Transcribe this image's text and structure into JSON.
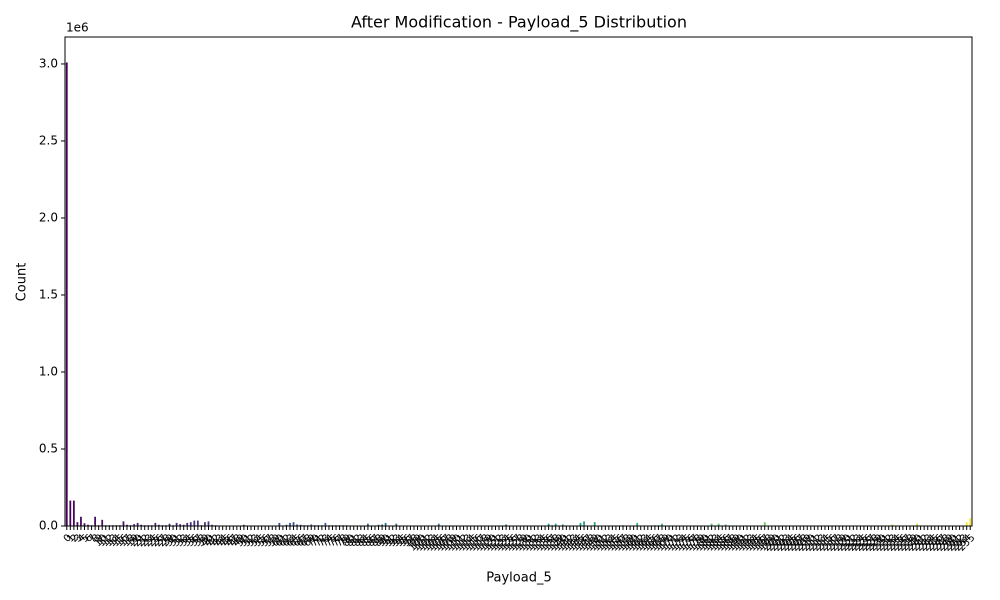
{
  "chart_data": {
    "type": "bar",
    "title": "After Modification - Payload_5 Distribution",
    "x_label": "Payload_5",
    "y_label": "Count",
    "y_offset_label": "1e6",
    "colormap": "viridis",
    "categories": [
      "0",
      "1",
      "2",
      "3",
      "4",
      "5",
      "6",
      "7",
      "8",
      "9",
      "10",
      "11",
      "12",
      "13",
      "14",
      "15",
      "16",
      "17",
      "18",
      "19",
      "20",
      "21",
      "22",
      "23",
      "24",
      "25",
      "26",
      "27",
      "28",
      "29",
      "30",
      "31",
      "32",
      "33",
      "34",
      "35",
      "36",
      "37",
      "38",
      "39",
      "40",
      "41",
      "42",
      "43",
      "44",
      "45",
      "46",
      "47",
      "48",
      "49",
      "50",
      "51",
      "52",
      "53",
      "54",
      "55",
      "56",
      "57",
      "58",
      "59",
      "60",
      "61",
      "62",
      "63",
      "64",
      "65",
      "66",
      "67",
      "68",
      "69",
      "70",
      "71",
      "72",
      "73",
      "74",
      "75",
      "76",
      "77",
      "78",
      "79",
      "80",
      "81",
      "82",
      "83",
      "84",
      "85",
      "86",
      "87",
      "88",
      "89",
      "90",
      "91",
      "92",
      "93",
      "94",
      "95",
      "96",
      "97",
      "98",
      "99",
      "100",
      "101",
      "102",
      "103",
      "104",
      "105",
      "106",
      "107",
      "108",
      "109",
      "110",
      "111",
      "112",
      "113",
      "114",
      "115",
      "116",
      "117",
      "118",
      "119",
      "120",
      "121",
      "122",
      "123",
      "124",
      "125",
      "126",
      "127",
      "128",
      "129",
      "130",
      "131",
      "132",
      "133",
      "134",
      "135",
      "136",
      "137",
      "138",
      "139",
      "140",
      "141",
      "142",
      "143",
      "144",
      "145",
      "146",
      "147",
      "148",
      "149",
      "150",
      "151",
      "152",
      "153",
      "154",
      "155",
      "156",
      "157",
      "158",
      "159",
      "160",
      "161",
      "162",
      "163",
      "164",
      "165",
      "166",
      "167",
      "168",
      "169",
      "170",
      "171",
      "172",
      "173",
      "174",
      "175",
      "176",
      "177",
      "178",
      "179",
      "180",
      "181",
      "182",
      "183",
      "184",
      "185",
      "186",
      "187",
      "188",
      "189",
      "190",
      "191",
      "192",
      "193",
      "194",
      "195",
      "196",
      "197",
      "198",
      "199",
      "200",
      "201",
      "202",
      "203",
      "204",
      "205",
      "206",
      "207",
      "208",
      "209",
      "210",
      "211",
      "212",
      "213",
      "214",
      "215",
      "216",
      "217",
      "218",
      "219",
      "220",
      "221",
      "222",
      "223",
      "224",
      "225",
      "226",
      "227",
      "228",
      "229",
      "230",
      "231",
      "232",
      "233",
      "234",
      "235",
      "236",
      "237",
      "238",
      "239",
      "240",
      "241",
      "242",
      "243",
      "244",
      "245",
      "246",
      "247",
      "248",
      "249",
      "250",
      "251",
      "252",
      "253",
      "254",
      "255"
    ],
    "values": [
      3010000,
      165000,
      165000,
      25000,
      60000,
      18000,
      8000,
      5000,
      60000,
      5000,
      40000,
      5000,
      5000,
      5000,
      5000,
      5000,
      30000,
      8000,
      5000,
      12000,
      20000,
      8000,
      5000,
      5000,
      5000,
      20000,
      8000,
      5000,
      5000,
      15000,
      5000,
      20000,
      12000,
      8000,
      20000,
      25000,
      35000,
      35000,
      5000,
      25000,
      30000,
      8000,
      5000,
      3000,
      3000,
      3000,
      3000,
      3000,
      3000,
      3000,
      8000,
      3000,
      3000,
      3000,
      3000,
      3000,
      3000,
      3000,
      3000,
      3000,
      20000,
      3000,
      8000,
      20000,
      25000,
      10000,
      8000,
      5000,
      5000,
      10000,
      5000,
      5000,
      5000,
      20000,
      5000,
      5000,
      5000,
      5000,
      5000,
      5000,
      3000,
      3000,
      3000,
      3000,
      3000,
      15000,
      3000,
      3000,
      8000,
      10000,
      20000,
      3000,
      3000,
      15000,
      3000,
      3000,
      3000,
      3000,
      3000,
      3000,
      3000,
      3000,
      3000,
      3000,
      3000,
      15000,
      3000,
      3000,
      3000,
      3000,
      3000,
      3000,
      3000,
      3000,
      3000,
      3000,
      3000,
      3000,
      3000,
      3000,
      3000,
      3000,
      3000,
      3000,
      10000,
      3000,
      3000,
      3000,
      3000,
      3000,
      3000,
      3000,
      3000,
      3000,
      3000,
      3000,
      15000,
      5000,
      15000,
      3000,
      10000,
      3000,
      3000,
      3000,
      3000,
      20000,
      30000,
      3000,
      3000,
      25000,
      3000,
      3000,
      3000,
      3000,
      3000,
      3000,
      3000,
      5000,
      3000,
      3000,
      3000,
      20000,
      3000,
      3000,
      3000,
      3000,
      5000,
      5000,
      15000,
      3000,
      3000,
      3000,
      3000,
      3000,
      3000,
      3000,
      3000,
      3000,
      3000,
      3000,
      3000,
      3000,
      15000,
      3000,
      15000,
      3000,
      10000,
      3000,
      3000,
      3000,
      3000,
      3000,
      3000,
      3000,
      3000,
      3000,
      3000,
      25000,
      3000,
      3000,
      3000,
      3000,
      3000,
      3000,
      3000,
      3000,
      3000,
      3000,
      3000,
      3000,
      3000,
      3000,
      3000,
      3000,
      3000,
      3000,
      3000,
      3000,
      3000,
      3000,
      3000,
      3000,
      3000,
      3000,
      3000,
      3000,
      3000,
      3000,
      3000,
      3000,
      3000,
      3000,
      3000,
      10000,
      3000,
      3000,
      3000,
      3000,
      3000,
      3000,
      15000,
      3000,
      3000,
      3000,
      3000,
      3000,
      3000,
      3000,
      3000,
      3000,
      3000,
      3000,
      3000,
      3000,
      25000,
      50000
    ],
    "ylim": [
      0,
      3175000
    ],
    "yticks": [
      {
        "value": 0,
        "label": "0.0"
      },
      {
        "value": 500000,
        "label": "0.5"
      },
      {
        "value": 1000000,
        "label": "1.0"
      },
      {
        "value": 1500000,
        "label": "1.5"
      },
      {
        "value": 2000000,
        "label": "2.0"
      },
      {
        "value": 2500000,
        "label": "2.5"
      },
      {
        "value": 3000000,
        "label": "3.0"
      }
    ],
    "grid": false
  }
}
